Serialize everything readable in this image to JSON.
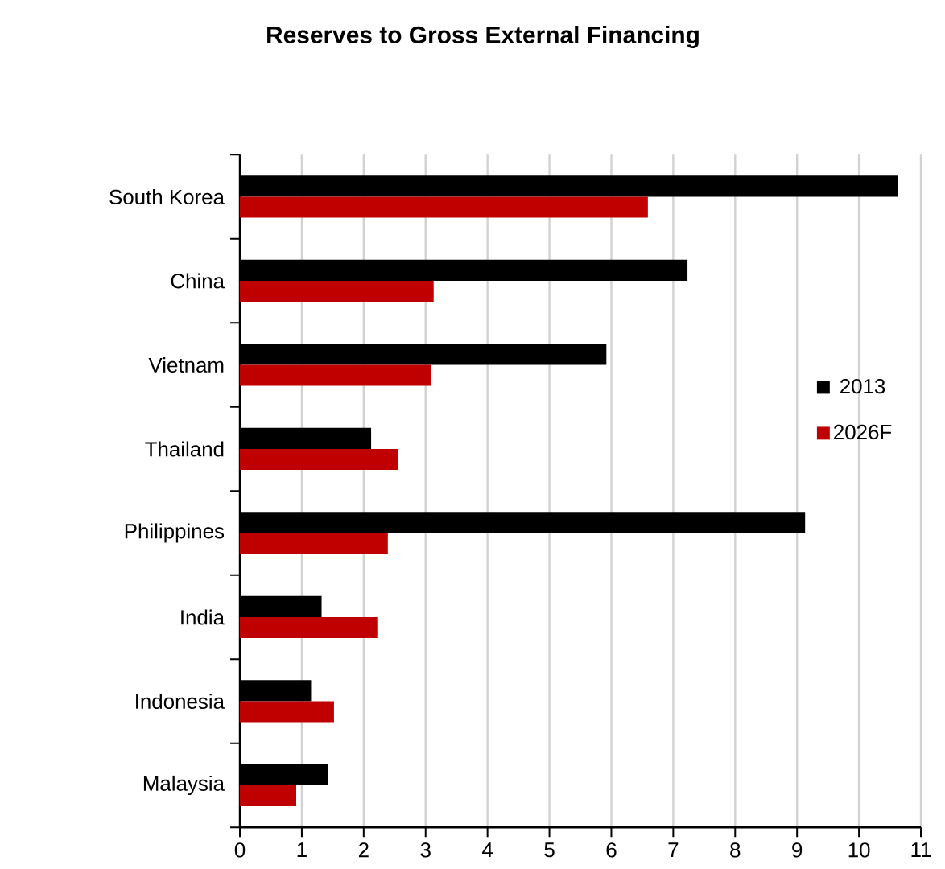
{
  "chart_data": {
    "type": "bar",
    "orientation": "horizontal",
    "title": "Reserves to Gross External Financing",
    "categories": [
      "South Korea",
      "China",
      "Vietnam",
      "Thailand",
      "Philippines",
      "India",
      "Indonesia",
      "Malaysia"
    ],
    "series": [
      {
        "name": "2013",
        "color": "#000000",
        "values": [
          10.63,
          7.23,
          5.92,
          2.12,
          9.13,
          1.32,
          1.15,
          1.42
        ]
      },
      {
        "name": "2026F",
        "color": "#c00000",
        "values": [
          6.59,
          3.13,
          3.09,
          2.55,
          2.39,
          2.22,
          1.52,
          0.91
        ]
      }
    ],
    "xlim": [
      0,
      11
    ],
    "xticks": [
      0,
      1,
      2,
      3,
      4,
      5,
      6,
      7,
      8,
      9,
      10,
      11
    ],
    "grid": "x",
    "legend": "right"
  }
}
